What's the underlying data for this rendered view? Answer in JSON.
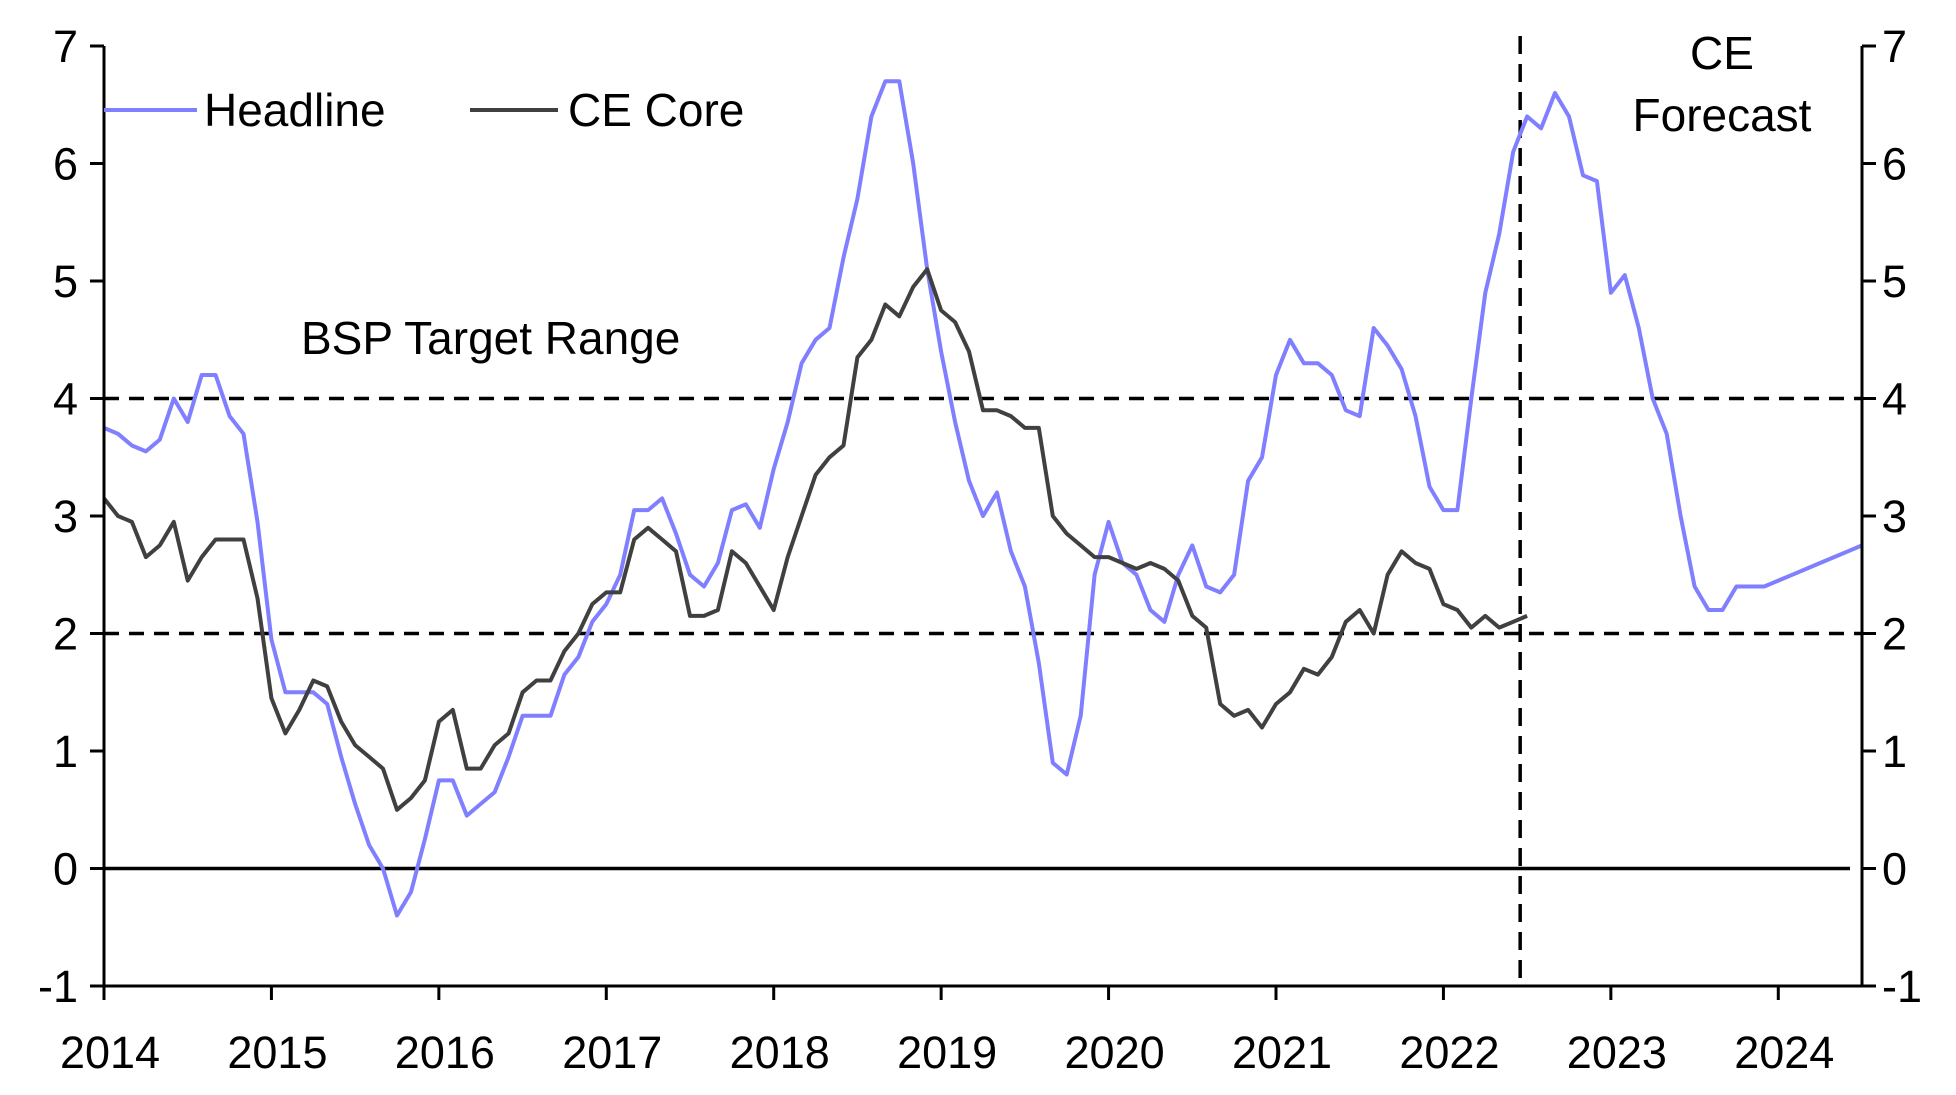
{
  "chart_data": {
    "type": "line",
    "title": "",
    "xlabel": "",
    "ylabel": "",
    "ylim": [
      -1,
      7
    ],
    "xlim": [
      2014,
      2024.5
    ],
    "yticks": [
      "-1",
      "0",
      "1",
      "2",
      "3",
      "4",
      "5",
      "6",
      "7"
    ],
    "xticks": [
      "2014",
      "2015",
      "2016",
      "2017",
      "2018",
      "2019",
      "2020",
      "2021",
      "2022",
      "2023",
      "2024"
    ],
    "frequency": "monthly",
    "start": "2014-01",
    "forecast_start": "2022-06",
    "legend": "top-left",
    "annotations": {
      "target_range_label": "BSP Target Range",
      "target_range": [
        2,
        4
      ],
      "forecast_label_line1": "CE",
      "forecast_label_line2": "Forecast"
    },
    "series": [
      {
        "name": "Headline",
        "color": "#7f7fff",
        "values": [
          3.75,
          3.7,
          3.6,
          3.55,
          3.65,
          4.0,
          3.8,
          4.2,
          4.2,
          3.85,
          3.7,
          2.95,
          1.95,
          1.5,
          1.5,
          1.5,
          1.4,
          0.95,
          0.55,
          0.2,
          0.0,
          -0.4,
          -0.2,
          0.25,
          0.75,
          0.75,
          0.45,
          0.55,
          0.65,
          0.95,
          1.3,
          1.3,
          1.3,
          1.65,
          1.8,
          2.1,
          2.25,
          2.5,
          3.05,
          3.05,
          3.15,
          2.85,
          2.5,
          2.4,
          2.6,
          3.05,
          3.1,
          2.9,
          3.4,
          3.8,
          4.3,
          4.5,
          4.6,
          5.2,
          5.7,
          6.4,
          6.7,
          6.7,
          6.0,
          5.1,
          4.4,
          3.8,
          3.3,
          3.0,
          3.2,
          2.7,
          2.4,
          1.75,
          0.9,
          0.8,
          1.3,
          2.5,
          2.95,
          2.6,
          2.5,
          2.2,
          2.1,
          2.5,
          2.75,
          2.4,
          2.35,
          2.5,
          3.3,
          3.5,
          4.2,
          4.5,
          4.3,
          4.3,
          4.2,
          3.9,
          3.85,
          4.6,
          4.45,
          4.25,
          3.85,
          3.25,
          3.05,
          3.05,
          4.0,
          4.9,
          5.4,
          6.1,
          6.4,
          6.3,
          6.6,
          6.4,
          5.9,
          5.85,
          4.9,
          5.05,
          4.6,
          4.0,
          3.7,
          3.0,
          2.4,
          2.2,
          2.2,
          2.4,
          2.4,
          2.4,
          2.45,
          2.5,
          2.55,
          2.6,
          2.65,
          2.7,
          2.75
        ]
      },
      {
        "name": "CE Core",
        "color": "#404040",
        "values": [
          3.15,
          3.0,
          2.95,
          2.65,
          2.75,
          2.95,
          2.45,
          2.65,
          2.8,
          2.8,
          2.8,
          2.3,
          1.45,
          1.15,
          1.35,
          1.6,
          1.55,
          1.25,
          1.05,
          0.95,
          0.85,
          0.5,
          0.6,
          0.75,
          1.25,
          1.35,
          0.85,
          0.85,
          1.05,
          1.15,
          1.5,
          1.6,
          1.6,
          1.85,
          2.0,
          2.25,
          2.35,
          2.35,
          2.8,
          2.9,
          2.8,
          2.7,
          2.15,
          2.15,
          2.2,
          2.7,
          2.6,
          2.4,
          2.2,
          2.65,
          3.0,
          3.35,
          3.5,
          3.6,
          4.35,
          4.5,
          4.8,
          4.7,
          4.95,
          5.1,
          4.75,
          4.65,
          4.4,
          3.9,
          3.9,
          3.85,
          3.75,
          3.75,
          3.0,
          2.85,
          2.75,
          2.65,
          2.65,
          2.6,
          2.55,
          2.6,
          2.55,
          2.45,
          2.15,
          2.05,
          1.4,
          1.3,
          1.35,
          1.2,
          1.4,
          1.5,
          1.7,
          1.65,
          1.8,
          2.1,
          2.2,
          2.0,
          2.5,
          2.7,
          2.6,
          2.55,
          2.25,
          2.2,
          2.05,
          2.15,
          2.05,
          2.1,
          2.15
        ]
      }
    ]
  }
}
